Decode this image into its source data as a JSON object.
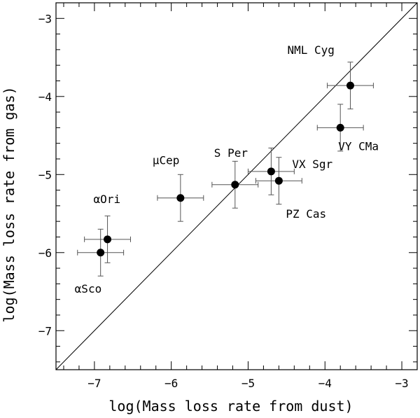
{
  "chart_data": {
    "type": "scatter",
    "title": "",
    "xlabel": "log(Mass loss rate from dust)",
    "ylabel": "log(Mass loss rate from gas)",
    "xlim": [
      -7.5,
      -2.8
    ],
    "ylim": [
      -7.5,
      -2.8
    ],
    "xticks": [
      -7,
      -6,
      -5,
      -4,
      -3
    ],
    "yticks": [
      -7,
      -6,
      -5,
      -4,
      -3
    ],
    "xtick_labels": [
      "−7",
      "−6",
      "−5",
      "−4",
      "−3"
    ],
    "ytick_labels": [
      "−7",
      "−6",
      "−5",
      "−4",
      "−3"
    ],
    "reference_line": {
      "name": "one-to-one",
      "from": [
        -7.5,
        -7.5
      ],
      "to": [
        -2.8,
        -2.8
      ]
    },
    "points": [
      {
        "name": "NML Cyg",
        "label": "NML Cyg",
        "x": -3.67,
        "y": -3.86,
        "xerr": 0.3,
        "yerr": 0.3
      },
      {
        "name": "VY CMa",
        "label": "VY CMa",
        "x": -3.8,
        "y": -4.4,
        "xerr": 0.3,
        "yerr": 0.3
      },
      {
        "name": "VX Sgr",
        "label": "VX Sgr",
        "x": -4.7,
        "y": -4.96,
        "xerr": 0.3,
        "yerr": 0.3
      },
      {
        "name": "PZ Cas",
        "label": "PZ Cas",
        "x": -4.6,
        "y": -5.08,
        "xerr": 0.3,
        "yerr": 0.3
      },
      {
        "name": "S Per",
        "label": "S Per",
        "x": -5.17,
        "y": -5.13,
        "xerr": 0.3,
        "yerr": 0.3
      },
      {
        "name": "mu Cep",
        "label": "μCep",
        "x": -5.88,
        "y": -5.3,
        "xerr": 0.3,
        "yerr": 0.3
      },
      {
        "name": "alpha Ori",
        "label": "αOri",
        "x": -6.83,
        "y": -5.83,
        "xerr": 0.3,
        "yerr": 0.3
      },
      {
        "name": "alpha Sco",
        "label": "αSco",
        "x": -6.92,
        "y": -6.0,
        "xerr": 0.3,
        "yerr": 0.3
      }
    ]
  }
}
